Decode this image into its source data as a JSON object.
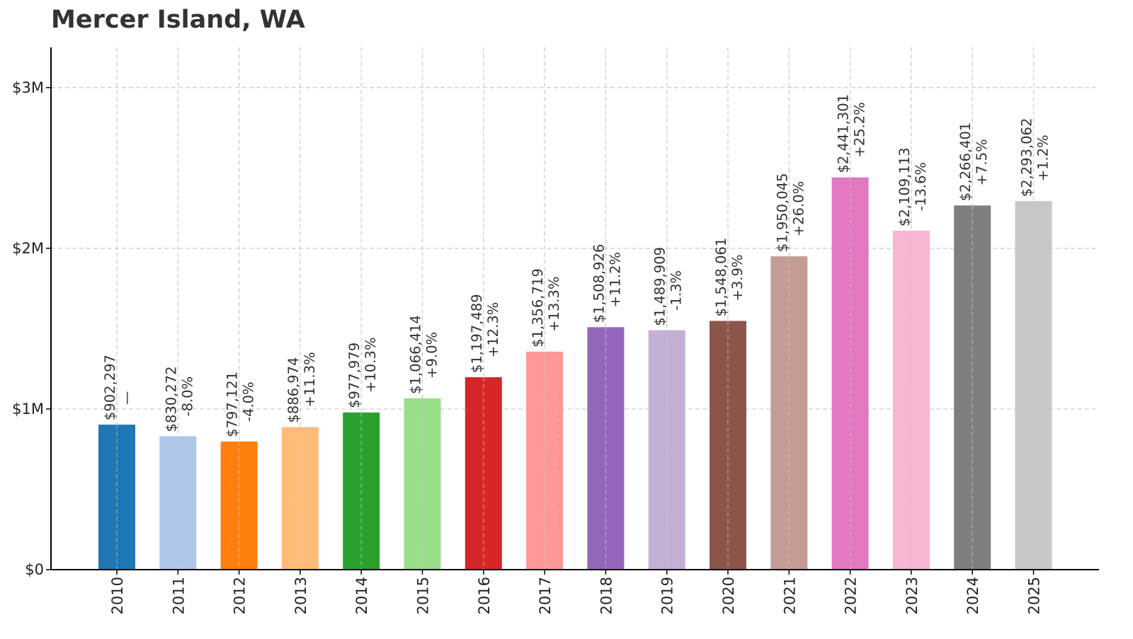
{
  "chart_data": {
    "type": "bar",
    "title": "Mercer Island, WA",
    "xlabel": "",
    "ylabel": "",
    "ylim": [
      0,
      3250000
    ],
    "grid": true,
    "y_ticks": [
      {
        "value": 0,
        "label": "$0"
      },
      {
        "value": 1000000,
        "label": "$1M"
      },
      {
        "value": 2000000,
        "label": "$2M"
      },
      {
        "value": 3000000,
        "label": "$3M"
      }
    ],
    "categories": [
      "2010",
      "2011",
      "2012",
      "2013",
      "2014",
      "2015",
      "2016",
      "2017",
      "2018",
      "2019",
      "2020",
      "2021",
      "2022",
      "2023",
      "2024",
      "2025"
    ],
    "values": [
      902297,
      830272,
      797121,
      886974,
      977979,
      1066414,
      1197489,
      1356719,
      1508926,
      1489909,
      1548061,
      1950045,
      2441301,
      2109113,
      2266401,
      2293062
    ],
    "value_labels": [
      "$902,297",
      "$830,272",
      "$797,121",
      "$886,974",
      "$977,979",
      "$1,066,414",
      "$1,197,489",
      "$1,356,719",
      "$1,508,926",
      "$1,489,909",
      "$1,548,061",
      "$1,950,045",
      "$2,441,301",
      "$2,109,113",
      "$2,266,401",
      "$2,293,062"
    ],
    "change_labels": [
      "—",
      "-8.0%",
      "-4.0%",
      "+11.3%",
      "+10.3%",
      "+9.0%",
      "+12.3%",
      "+13.3%",
      "+11.2%",
      "-1.3%",
      "+3.9%",
      "+26.0%",
      "+25.2%",
      "-13.6%",
      "+7.5%",
      "+1.2%"
    ],
    "colors": [
      "#1f77b4",
      "#aec7e8",
      "#ff7f0e",
      "#ffbb78",
      "#2ca02c",
      "#98df8a",
      "#d62728",
      "#ff9896",
      "#9467bd",
      "#c5b0d5",
      "#8c564b",
      "#c49c94",
      "#e377c2",
      "#f7b6d2",
      "#7f7f7f",
      "#c7c7c7"
    ]
  }
}
